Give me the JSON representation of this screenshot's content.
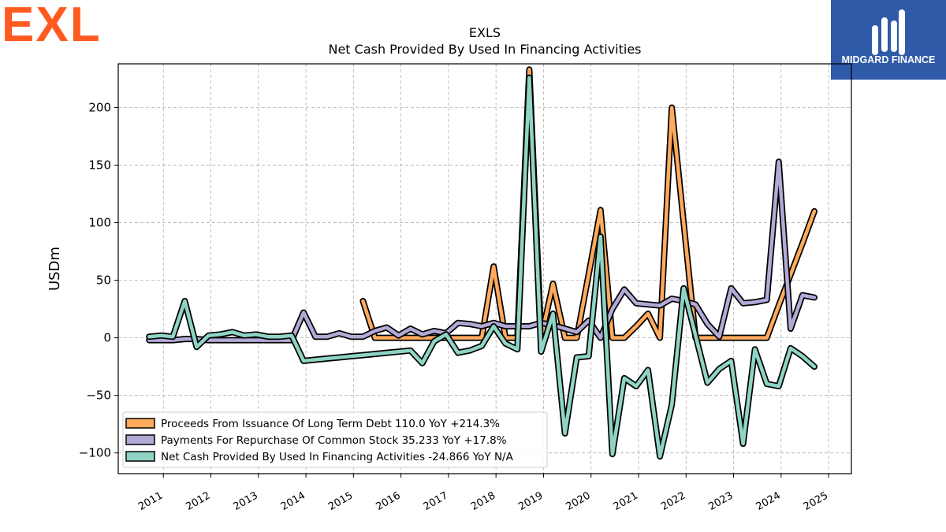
{
  "branding": {
    "left_logo_text": "EXL",
    "left_logo_color": "#ff5a1f",
    "right_logo_text": "MIDGARD FINANCE",
    "right_logo_bg": "#2f5aa8"
  },
  "chart_data": {
    "type": "line",
    "title": "EXLS",
    "subtitle": "Net Cash Provided By Used In Financing Activities",
    "xlabel": "",
    "ylabel": "USDm",
    "ylim": [
      -118,
      238
    ],
    "xlim": [
      2010.05,
      2025.48
    ],
    "yticks": [
      -100,
      -50,
      0,
      50,
      100,
      150,
      200
    ],
    "yticklabels": [
      "−100",
      "−50",
      "0",
      "50",
      "100",
      "150",
      "200"
    ],
    "xticks": [
      2011,
      2012,
      2013,
      2014,
      2015,
      2016,
      2017,
      2018,
      2019,
      2020,
      2021,
      2022,
      2023,
      2024,
      2025
    ],
    "grid": true,
    "legend_position": "lower-left",
    "series": [
      {
        "name": "Proceeds From Issuance Of Long Term Debt",
        "legend_label": "Proceeds From Issuance Of Long Term Debt  110.0 YoY +214.3%",
        "color": "#ffaa5c",
        "x": [
          2015.2,
          2015.45,
          2015.7,
          2015.95,
          2016.2,
          2016.45,
          2016.7,
          2016.95,
          2017.2,
          2017.45,
          2017.7,
          2017.95,
          2018.2,
          2018.45,
          2018.7,
          2018.95,
          2019.2,
          2019.45,
          2019.7,
          2019.95,
          2020.2,
          2020.45,
          2020.7,
          2020.95,
          2021.2,
          2021.45,
          2021.7,
          2021.95,
          2022.2,
          2022.45,
          2022.7,
          2022.95,
          2023.2,
          2023.45,
          2023.7,
          2023.95,
          2024.2,
          2024.45,
          2024.7
        ],
        "values": [
          32,
          0,
          0,
          0,
          0,
          0,
          0,
          0,
          0,
          0,
          0,
          62,
          0,
          0,
          233,
          0,
          47,
          0,
          0,
          55,
          111,
          0,
          0,
          10,
          21,
          0,
          200,
          100,
          0,
          0,
          0,
          0,
          0,
          0,
          0,
          28,
          55,
          82,
          110
        ]
      },
      {
        "name": "Payments For Repurchase Of Common Stock",
        "legend_label": "Payments For Repurchase Of Common Stock  35.233 YoY +17.8%",
        "color": "#b3a9d6",
        "x": [
          2010.7,
          2010.95,
          2011.2,
          2011.45,
          2011.7,
          2011.95,
          2012.2,
          2012.45,
          2012.7,
          2012.95,
          2013.2,
          2013.45,
          2013.7,
          2013.95,
          2014.2,
          2014.45,
          2014.7,
          2014.95,
          2015.2,
          2015.45,
          2015.7,
          2015.95,
          2016.2,
          2016.45,
          2016.7,
          2016.95,
          2017.2,
          2017.45,
          2017.7,
          2017.95,
          2018.2,
          2018.45,
          2018.7,
          2018.95,
          2019.2,
          2019.45,
          2019.7,
          2019.95,
          2020.2,
          2020.45,
          2020.7,
          2020.95,
          2021.2,
          2021.45,
          2021.7,
          2021.95,
          2022.2,
          2022.45,
          2022.7,
          2022.95,
          2023.2,
          2023.45,
          2023.7,
          2023.95,
          2024.2,
          2024.45,
          2024.7
        ],
        "values": [
          -2,
          -2,
          -2,
          -1,
          -1,
          -2,
          -2,
          -2,
          -2,
          -2,
          -2,
          -2,
          -2,
          22,
          1,
          1,
          4,
          1,
          1,
          6,
          9,
          2,
          8,
          3,
          6,
          4,
          13,
          12,
          10,
          13,
          10,
          10,
          10,
          13,
          11,
          8,
          5,
          15,
          0,
          25,
          42,
          30,
          29,
          28,
          34,
          32,
          29,
          12,
          1,
          43,
          30,
          31,
          33,
          153,
          8,
          37,
          35
        ]
      },
      {
        "name": "Net Cash Provided By Used In Financing Activities",
        "legend_label": "Net Cash Provided By Used In Financing Activities  -24.866 YoY N/A",
        "color": "#8fd4c4",
        "x": [
          2010.7,
          2010.95,
          2011.2,
          2011.45,
          2011.7,
          2011.95,
          2012.2,
          2012.45,
          2012.7,
          2012.95,
          2013.2,
          2013.45,
          2013.7,
          2013.95,
          2014.2,
          2014.45,
          2014.7,
          2014.95,
          2015.2,
          2015.45,
          2015.7,
          2015.95,
          2016.2,
          2016.45,
          2016.7,
          2016.95,
          2017.2,
          2017.45,
          2017.7,
          2017.95,
          2018.2,
          2018.45,
          2018.7,
          2018.95,
          2019.2,
          2019.45,
          2019.7,
          2019.95,
          2020.2,
          2020.45,
          2020.7,
          2020.95,
          2021.2,
          2021.45,
          2021.7,
          2021.95,
          2022.2,
          2022.45,
          2022.7,
          2022.95,
          2023.2,
          2023.45,
          2023.7,
          2023.95,
          2024.2,
          2024.45,
          2024.7
        ],
        "values": [
          1,
          2,
          1,
          32,
          -8,
          2,
          3,
          5,
          2,
          3,
          1,
          1,
          2,
          -20,
          -19,
          -18,
          -17,
          -16,
          -15,
          -14,
          -13,
          -12,
          -11,
          -22,
          -3,
          3,
          -13,
          -11,
          -7,
          10,
          -5,
          -10,
          226,
          -12,
          21,
          -83,
          -17,
          -16,
          88,
          -101,
          -35,
          -42,
          -28,
          -103,
          -58,
          43,
          2,
          -39,
          -27,
          -20,
          -92,
          -10,
          -40,
          -42,
          -9,
          -16,
          -25
        ]
      }
    ]
  }
}
